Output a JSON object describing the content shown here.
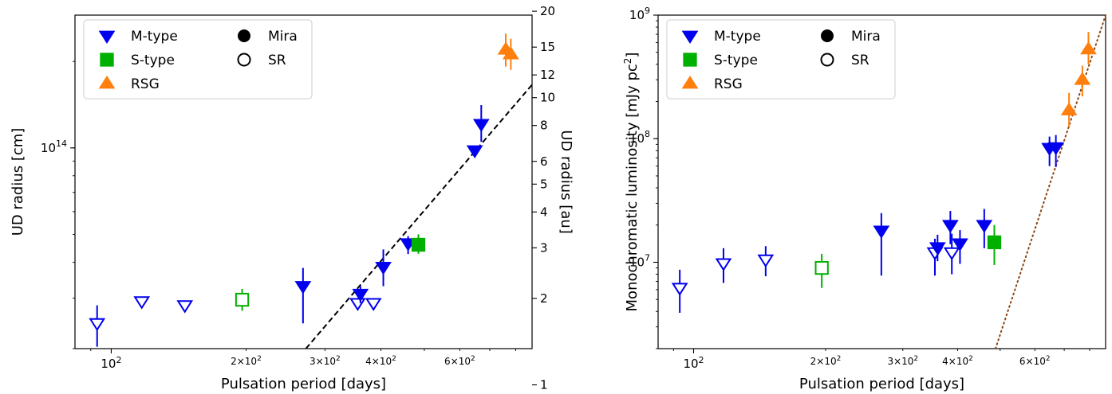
{
  "chart_data": [
    {
      "type": "scatter",
      "xlabel": "Pulsation period [days]",
      "ylabel": "UD radius [cm]",
      "y2label": "UD radius [au]",
      "x_scale": "log",
      "y_scale": "log",
      "xlim": [
        83,
        870
      ],
      "ylim": [
        20000000000000.0,
        290000000000000.0
      ],
      "x_ticks_major": [
        {
          "value": 100,
          "label": "10",
          "sup": "2"
        }
      ],
      "x_ticks_minor": [
        {
          "value": 200,
          "label": "2×10",
          "sup": "2"
        },
        {
          "value": 300,
          "label": "3×10",
          "sup": "2"
        },
        {
          "value": 400,
          "label": "4×10",
          "sup": "2"
        },
        {
          "value": 600,
          "label": "6×10",
          "sup": "2"
        }
      ],
      "y_ticks_major": [
        {
          "value": 100000000000000.0,
          "label": "10",
          "sup": "14"
        }
      ],
      "y2_ticks": [
        {
          "value": 1,
          "label": "1"
        },
        {
          "value": 2,
          "label": "2"
        },
        {
          "value": 3,
          "label": "3"
        },
        {
          "value": 4,
          "label": "4"
        },
        {
          "value": 5,
          "label": "5"
        },
        {
          "value": 6,
          "label": "6"
        },
        {
          "value": 8,
          "label": "8"
        },
        {
          "value": 10,
          "label": "10"
        },
        {
          "value": 12,
          "label": "12"
        },
        {
          "value": 15,
          "label": "15"
        },
        {
          "value": 20,
          "label": "20"
        }
      ],
      "au_cm": 14960000000000.0,
      "points": [
        {
          "x": 93,
          "y": 24500000000000.0,
          "yerr": [
            4200000000000.0,
            3800000000000.0
          ],
          "type": "M-type",
          "class": "SR"
        },
        {
          "x": 117,
          "y": 29200000000000.0,
          "yerr": [
            0,
            0
          ],
          "type": "M-type",
          "class": "SR"
        },
        {
          "x": 146,
          "y": 28300000000000.0,
          "yerr": [
            0,
            0
          ],
          "type": "M-type",
          "class": "SR"
        },
        {
          "x": 196,
          "y": 29600000000000.0,
          "yerr": [
            2500000000000.0,
            2700000000000.0
          ],
          "type": "S-type",
          "class": "SR"
        },
        {
          "x": 268,
          "y": 33000000000000.0,
          "yerr": [
            8500000000000.0,
            5200000000000.0
          ],
          "type": "M-type",
          "class": "Mira"
        },
        {
          "x": 355,
          "y": 28800000000000.0,
          "yerr": [
            0,
            0
          ],
          "type": "M-type",
          "class": "SR"
        },
        {
          "x": 360,
          "y": 31000000000000.0,
          "yerr": [
            2200000000000.0,
            2000000000000.0
          ],
          "type": "M-type",
          "class": "Mira"
        },
        {
          "x": 385,
          "y": 28800000000000.0,
          "yerr": [
            0,
            0
          ],
          "type": "M-type",
          "class": "SR"
        },
        {
          "x": 405,
          "y": 38500000000000.0,
          "yerr": [
            5500000000000.0,
            5800000000000.0
          ],
          "type": "M-type",
          "class": "Mira"
        },
        {
          "x": 460,
          "y": 46500000000000.0,
          "yerr": [
            3800000000000.0,
            2800000000000.0
          ],
          "type": "M-type",
          "class": "Mira"
        },
        {
          "x": 485,
          "y": 46000000000000.0,
          "yerr": [
            3200000000000.0,
            4000000000000.0
          ],
          "type": "S-type",
          "class": "Mira"
        },
        {
          "x": 648,
          "y": 98000000000000.0,
          "yerr": [
            0,
            0
          ],
          "type": "M-type",
          "class": "Mira"
        },
        {
          "x": 670,
          "y": 121000000000000.0,
          "yerr": [
            16000000000000.0,
            20000000000000.0
          ],
          "type": "M-type",
          "class": "Mira"
        },
        {
          "x": 760,
          "y": 220000000000000.0,
          "yerr": [
            28000000000000.0,
            30000000000000.0
          ],
          "type": "RSG",
          "class": "Mira"
        },
        {
          "x": 780,
          "y": 212000000000000.0,
          "yerr": [
            25000000000000.0,
            28000000000000.0
          ],
          "type": "RSG",
          "class": "Mira"
        }
      ],
      "fit_line": {
        "style": "dashed",
        "color": "#000000",
        "x": [
          272,
          870
        ],
        "y": [
          20000000000000.0,
          166000000000000.0
        ]
      },
      "legend": {
        "placement": "upper-left",
        "entries": [
          {
            "label": "M-type",
            "marker": "triangle-down",
            "color": "#0000ee"
          },
          {
            "label": "S-type",
            "marker": "square",
            "color": "#00b000"
          },
          {
            "label": "RSG",
            "marker": "triangle-up",
            "color": "#ff7f0e"
          },
          {
            "label": "Mira",
            "marker": "circle-filled",
            "color": "#000000"
          },
          {
            "label": "SR",
            "marker": "circle-open",
            "color": "#000000"
          }
        ]
      }
    },
    {
      "type": "scatter",
      "xlabel": "Pulsation period [days]",
      "ylabel": "Monochromatic luminosity [mJy pc",
      "ylabel_sup": "2",
      "ylabel_end": "]",
      "x_scale": "log",
      "y_scale": "log",
      "xlim": [
        83,
        870
      ],
      "ylim": [
        2000000.0,
        1000000000.0
      ],
      "x_ticks_major": [
        {
          "value": 100,
          "label": "10",
          "sup": "2"
        }
      ],
      "x_ticks_minor": [
        {
          "value": 200,
          "label": "2×10",
          "sup": "2"
        },
        {
          "value": 300,
          "label": "3×10",
          "sup": "2"
        },
        {
          "value": 400,
          "label": "4×10",
          "sup": "2"
        },
        {
          "value": 600,
          "label": "6×10",
          "sup": "2"
        }
      ],
      "y_ticks_major": [
        {
          "value": 10000000.0,
          "label": "10",
          "sup": "7"
        },
        {
          "value": 100000000.0,
          "label": "10",
          "sup": "8"
        },
        {
          "value": 1000000000.0,
          "label": "10",
          "sup": "9"
        }
      ],
      "points": [
        {
          "x": 93,
          "y": 6200000.0,
          "yerr": [
            2300000.0,
            2500000.0
          ],
          "type": "M-type",
          "class": "SR"
        },
        {
          "x": 117,
          "y": 9800000.0,
          "yerr": [
            3000000.0,
            3200000.0
          ],
          "type": "M-type",
          "class": "SR"
        },
        {
          "x": 146,
          "y": 10500000.0,
          "yerr": [
            2800000.0,
            3000000.0
          ],
          "type": "M-type",
          "class": "SR"
        },
        {
          "x": 196,
          "y": 9000000.0,
          "yerr": [
            2800000.0,
            2700000.0
          ],
          "type": "S-type",
          "class": "SR"
        },
        {
          "x": 268,
          "y": 18000000.0,
          "yerr": [
            10200000.0,
            7000000.0
          ],
          "type": "M-type",
          "class": "Mira"
        },
        {
          "x": 355,
          "y": 12000000.0,
          "yerr": [
            4200000.0,
            3500000.0
          ],
          "type": "M-type",
          "class": "SR"
        },
        {
          "x": 360,
          "y": 13200000.0,
          "yerr": [
            3000000.0,
            3500000.0
          ],
          "type": "M-type",
          "class": "Mira"
        },
        {
          "x": 385,
          "y": 20000000.0,
          "yerr": [
            6000000.0,
            6000000.0
          ],
          "type": "M-type",
          "class": "Mira"
        },
        {
          "x": 388,
          "y": 12000000.0,
          "yerr": [
            4000000.0,
            5000000.0
          ],
          "type": "M-type",
          "class": "SR"
        },
        {
          "x": 405,
          "y": 14200000.0,
          "yerr": [
            4500000.0,
            4000000.0
          ],
          "type": "M-type",
          "class": "Mira"
        },
        {
          "x": 460,
          "y": 20000000.0,
          "yerr": [
            7000000.0,
            7000000.0
          ],
          "type": "M-type",
          "class": "Mira"
        },
        {
          "x": 485,
          "y": 14500000.0,
          "yerr": [
            5000000.0,
            5500000.0
          ],
          "type": "S-type",
          "class": "Mira"
        },
        {
          "x": 648,
          "y": 84000000.0,
          "yerr": [
            24000000.0,
            20000000.0
          ],
          "type": "M-type",
          "class": "Mira"
        },
        {
          "x": 670,
          "y": 85000000.0,
          "yerr": [
            26000000.0,
            22000000.0
          ],
          "type": "M-type",
          "class": "Mira"
        },
        {
          "x": 718,
          "y": 170000000.0,
          "yerr": [
            45000000.0,
            65000000.0
          ],
          "type": "RSG",
          "class": "Mira"
        },
        {
          "x": 770,
          "y": 300000000.0,
          "yerr": [
            80000000.0,
            90000000.0
          ],
          "type": "RSG",
          "class": "Mira"
        },
        {
          "x": 795,
          "y": 530000000.0,
          "yerr": [
            130000000.0,
            200000000.0
          ],
          "type": "RSG",
          "class": "Mira"
        }
      ],
      "fit_line": {
        "style": "dotted",
        "color": "#8b4513",
        "x": [
          488,
          870
        ],
        "y": [
          2000000.0,
          1000000000.0
        ]
      },
      "legend": {
        "placement": "upper-left",
        "entries": [
          {
            "label": "M-type",
            "marker": "triangle-down",
            "color": "#0000ee"
          },
          {
            "label": "S-type",
            "marker": "square",
            "color": "#00b000"
          },
          {
            "label": "RSG",
            "marker": "triangle-up",
            "color": "#ff7f0e"
          },
          {
            "label": "Mira",
            "marker": "circle-filled",
            "color": "#000000"
          },
          {
            "label": "SR",
            "marker": "circle-open",
            "color": "#000000"
          }
        ]
      }
    }
  ],
  "colors": {
    "M-type": "#0000ee",
    "S-type": "#00b000",
    "RSG": "#ff7f0e"
  }
}
